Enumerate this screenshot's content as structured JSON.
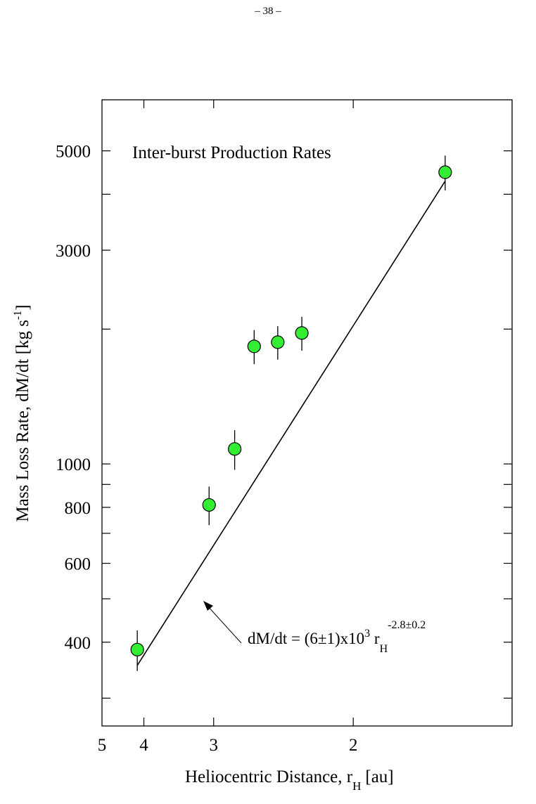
{
  "page": {
    "number": "– 38 –"
  },
  "chart_data": {
    "type": "scatter",
    "title": "Inter-burst Production Rates",
    "xlabel": "Heliocentric Distance, r",
    "xlabel_sub": "H",
    "xlabel_tail": "[au]",
    "ylabel": "Mass Loss Rate, dM/dt [kg s",
    "ylabel_sup": "-1",
    "ylabel_tail": "]",
    "x_scale": "reciprocal",
    "y_scale": "log",
    "xlim": [
      5,
      1.45
    ],
    "ylim": [
      260,
      6500
    ],
    "x_ticks": [
      5,
      4,
      3,
      2
    ],
    "x_tick_labels": [
      "5",
      "4",
      "3",
      "2"
    ],
    "y_ticks_labeled": [
      400,
      600,
      800,
      1000,
      3000,
      5000
    ],
    "y_tick_labels": [
      "400",
      "600",
      "800",
      "1000",
      "3000",
      "5000"
    ],
    "y_ticks_minor": [
      300,
      500,
      700,
      900,
      2000,
      4000
    ],
    "grid": false,
    "marker_color": "#33ee33",
    "points": [
      {
        "x": 4.13,
        "y": 385,
        "err": 40
      },
      {
        "x": 3.05,
        "y": 810,
        "err": 80
      },
      {
        "x": 2.79,
        "y": 1080,
        "err": 110
      },
      {
        "x": 2.62,
        "y": 1830,
        "err": 160
      },
      {
        "x": 2.44,
        "y": 1870,
        "err": 160
      },
      {
        "x": 2.28,
        "y": 1960,
        "err": 170
      },
      {
        "x": 1.64,
        "y": 4480,
        "err": 400
      }
    ],
    "fit_line": {
      "x": [
        4.13,
        1.64
      ],
      "y": [
        355,
        4280
      ]
    },
    "annotation": {
      "text": "dM/dt = (6±1)x10",
      "sup": "3",
      "var": " r",
      "sub": "H",
      "exp": "-2.8±0.2"
    }
  }
}
